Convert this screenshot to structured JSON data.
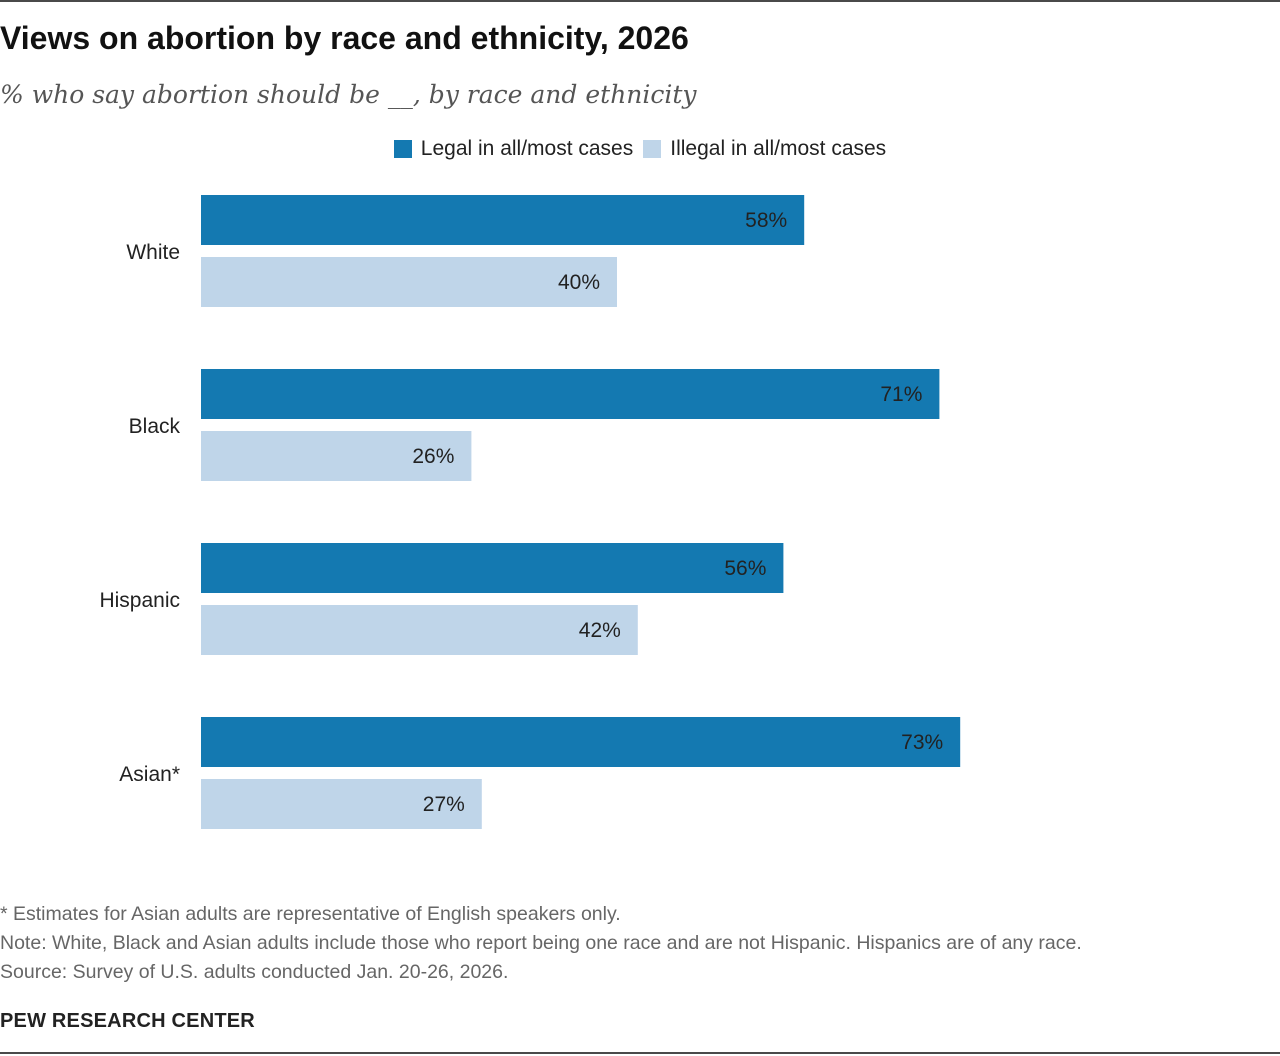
{
  "title": "Views on abortion by race and ethnicity, 2026",
  "subtitle": "% who say abortion should be __, by race and ethnicity",
  "legend": {
    "legal_label": "Legal in all/most cases",
    "illegal_label": "Illegal in all/most cases"
  },
  "colors": {
    "legal": "#1479b1",
    "illegal": "#bfd5e9"
  },
  "chart_data": {
    "type": "bar",
    "orientation": "horizontal",
    "categories": [
      "White",
      "Black",
      "Hispanic",
      "Asian*"
    ],
    "series": [
      {
        "name": "Legal in all/most cases",
        "values": [
          58,
          71,
          56,
          73
        ]
      },
      {
        "name": "Illegal in all/most cases",
        "values": [
          40,
          26,
          42,
          27
        ]
      }
    ],
    "value_suffix": "%",
    "xlim": [
      0,
      100
    ],
    "grid": false,
    "legend_position": "top"
  },
  "notes": [
    "* Estimates for Asian adults are representative of English speakers only.",
    "Note: White, Black and Asian adults include those who report being one race and are not Hispanic. Hispanics are of any race.",
    "Source: Survey of U.S. adults conducted Jan. 20-26, 2026."
  ],
  "source_org": "PEW RESEARCH CENTER"
}
